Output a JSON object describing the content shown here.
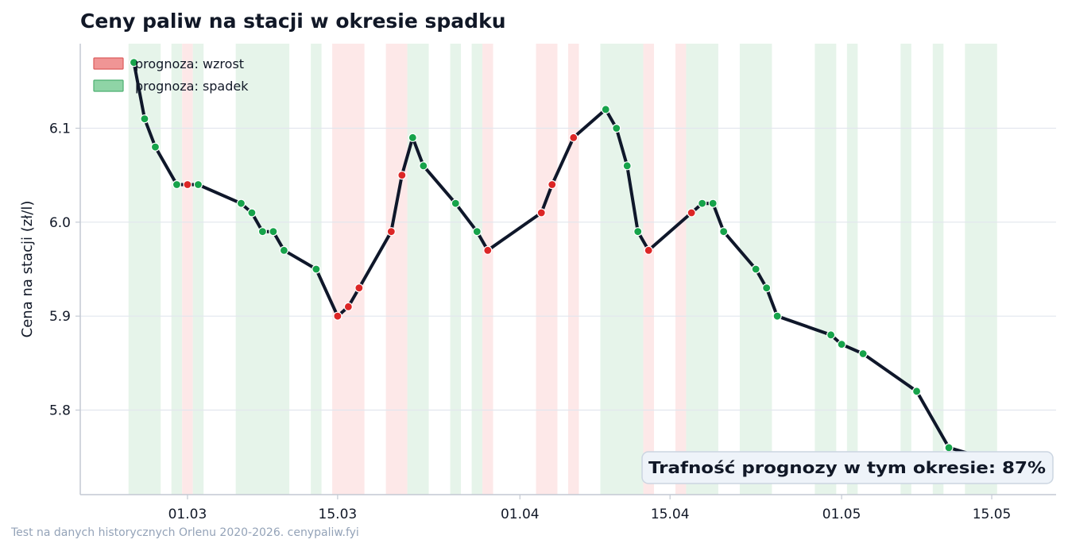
{
  "chart_data": {
    "type": "line",
    "title": "Ceny paliw na stacji w okresie spadku",
    "ylabel": "Cena na stacji (zł/l)",
    "xlabel": "",
    "x_ticks": [
      {
        "label": "01.03",
        "date": "2026-03-01"
      },
      {
        "label": "15.03",
        "date": "2026-03-15"
      },
      {
        "label": "01.04",
        "date": "2026-04-01"
      },
      {
        "label": "15.04",
        "date": "2026-04-15"
      },
      {
        "label": "01.05",
        "date": "2026-05-01"
      },
      {
        "label": "15.05",
        "date": "2026-05-15"
      }
    ],
    "y_ticks": [
      5.8,
      5.9,
      6.0,
      6.1
    ],
    "xlim": [
      "2026-02-19",
      "2026-05-21"
    ],
    "ylim": [
      5.71,
      6.19
    ],
    "grid": "horizontal",
    "line_color": "#0f172a",
    "colors": {
      "wzrost": "#dc2626",
      "spadek": "#16a34a",
      "band_wzrost": "#fde8e8",
      "band_spadek": "#e6f4ea"
    },
    "legend": {
      "placement": "top-left",
      "entries": [
        {
          "label": "prognoza: wzrost",
          "color": "#f09595",
          "edge": "#dc5c5c"
        },
        {
          "label": "prognoza: spadek",
          "color": "#8fd4a6",
          "edge": "#4caf70"
        }
      ]
    },
    "series": [
      {
        "points": [
          {
            "date": "2026-02-24",
            "value": 6.17,
            "forecast": "spadek"
          },
          {
            "date": "2026-02-25",
            "value": 6.11,
            "forecast": "spadek"
          },
          {
            "date": "2026-02-26",
            "value": 6.08,
            "forecast": "spadek"
          },
          {
            "date": "2026-02-28",
            "value": 6.04,
            "forecast": "spadek"
          },
          {
            "date": "2026-03-01",
            "value": 6.04,
            "forecast": "wzrost"
          },
          {
            "date": "2026-03-02",
            "value": 6.04,
            "forecast": "spadek"
          },
          {
            "date": "2026-03-06",
            "value": 6.02,
            "forecast": "spadek"
          },
          {
            "date": "2026-03-07",
            "value": 6.01,
            "forecast": "spadek"
          },
          {
            "date": "2026-03-08",
            "value": 5.99,
            "forecast": "spadek"
          },
          {
            "date": "2026-03-09",
            "value": 5.99,
            "forecast": "spadek"
          },
          {
            "date": "2026-03-10",
            "value": 5.97,
            "forecast": "spadek"
          },
          {
            "date": "2026-03-13",
            "value": 5.95,
            "forecast": "spadek"
          },
          {
            "date": "2026-03-15",
            "value": 5.9,
            "forecast": "wzrost"
          },
          {
            "date": "2026-03-16",
            "value": 5.91,
            "forecast": "wzrost"
          },
          {
            "date": "2026-03-17",
            "value": 5.93,
            "forecast": "wzrost"
          },
          {
            "date": "2026-03-20",
            "value": 5.99,
            "forecast": "wzrost"
          },
          {
            "date": "2026-03-21",
            "value": 6.05,
            "forecast": "wzrost"
          },
          {
            "date": "2026-03-22",
            "value": 6.09,
            "forecast": "spadek"
          },
          {
            "date": "2026-03-23",
            "value": 6.06,
            "forecast": "spadek"
          },
          {
            "date": "2026-03-26",
            "value": 6.02,
            "forecast": "spadek"
          },
          {
            "date": "2026-03-28",
            "value": 5.99,
            "forecast": "spadek"
          },
          {
            "date": "2026-03-29",
            "value": 5.97,
            "forecast": "wzrost"
          },
          {
            "date": "2026-04-03",
            "value": 6.01,
            "forecast": "wzrost"
          },
          {
            "date": "2026-04-04",
            "value": 6.04,
            "forecast": "wzrost"
          },
          {
            "date": "2026-04-06",
            "value": 6.09,
            "forecast": "wzrost"
          },
          {
            "date": "2026-04-09",
            "value": 6.12,
            "forecast": "spadek"
          },
          {
            "date": "2026-04-10",
            "value": 6.1,
            "forecast": "spadek"
          },
          {
            "date": "2026-04-11",
            "value": 6.06,
            "forecast": "spadek"
          },
          {
            "date": "2026-04-12",
            "value": 5.99,
            "forecast": "spadek"
          },
          {
            "date": "2026-04-13",
            "value": 5.97,
            "forecast": "wzrost"
          },
          {
            "date": "2026-04-17",
            "value": 6.01,
            "forecast": "wzrost"
          },
          {
            "date": "2026-04-18",
            "value": 6.02,
            "forecast": "spadek"
          },
          {
            "date": "2026-04-19",
            "value": 6.02,
            "forecast": "spadek"
          },
          {
            "date": "2026-04-20",
            "value": 5.99,
            "forecast": "spadek"
          },
          {
            "date": "2026-04-23",
            "value": 5.95,
            "forecast": "spadek"
          },
          {
            "date": "2026-04-24",
            "value": 5.93,
            "forecast": "spadek"
          },
          {
            "date": "2026-04-25",
            "value": 5.9,
            "forecast": "spadek"
          },
          {
            "date": "2026-04-30",
            "value": 5.88,
            "forecast": "spadek"
          },
          {
            "date": "2026-05-01",
            "value": 5.87,
            "forecast": "spadek"
          },
          {
            "date": "2026-05-03",
            "value": 5.86,
            "forecast": "spadek"
          },
          {
            "date": "2026-05-08",
            "value": 5.82,
            "forecast": "spadek"
          },
          {
            "date": "2026-05-11",
            "value": 5.76,
            "forecast": "spadek"
          },
          {
            "date": "2026-05-14",
            "value": 5.75,
            "forecast": "spadek"
          },
          {
            "date": "2026-05-15",
            "value": 5.75,
            "forecast": "spadek"
          },
          {
            "date": "2026-05-16",
            "value": 5.73,
            "forecast": "spadek"
          }
        ]
      }
    ],
    "bands": [
      {
        "start": "2026-02-23T12:00",
        "end": "2026-02-26T12:00",
        "forecast": "spadek"
      },
      {
        "start": "2026-02-27T12:00",
        "end": "2026-02-28T12:00",
        "forecast": "spadek"
      },
      {
        "start": "2026-02-28T12:00",
        "end": "2026-03-01T12:00",
        "forecast": "wzrost"
      },
      {
        "start": "2026-03-01T12:00",
        "end": "2026-03-02T12:00",
        "forecast": "spadek"
      },
      {
        "start": "2026-03-05T12:00",
        "end": "2026-03-10T12:00",
        "forecast": "spadek"
      },
      {
        "start": "2026-03-12T12:00",
        "end": "2026-03-13T12:00",
        "forecast": "spadek"
      },
      {
        "start": "2026-03-14T12:00",
        "end": "2026-03-17T12:00",
        "forecast": "wzrost"
      },
      {
        "start": "2026-03-19T12:00",
        "end": "2026-03-21T12:00",
        "forecast": "wzrost"
      },
      {
        "start": "2026-03-21T12:00",
        "end": "2026-03-23T12:00",
        "forecast": "spadek"
      },
      {
        "start": "2026-03-25T12:00",
        "end": "2026-03-26T12:00",
        "forecast": "spadek"
      },
      {
        "start": "2026-03-27T12:00",
        "end": "2026-03-28T12:00",
        "forecast": "spadek"
      },
      {
        "start": "2026-03-28T12:00",
        "end": "2026-03-29T12:00",
        "forecast": "wzrost"
      },
      {
        "start": "2026-04-02T12:00",
        "end": "2026-04-04T12:00",
        "forecast": "wzrost"
      },
      {
        "start": "2026-04-05T12:00",
        "end": "2026-04-06T12:00",
        "forecast": "wzrost"
      },
      {
        "start": "2026-04-08T12:00",
        "end": "2026-04-12T12:00",
        "forecast": "spadek"
      },
      {
        "start": "2026-04-12T12:00",
        "end": "2026-04-13T12:00",
        "forecast": "wzrost"
      },
      {
        "start": "2026-04-15T12:00",
        "end": "2026-04-16T12:00",
        "forecast": "wzrost"
      },
      {
        "start": "2026-04-16T12:00",
        "end": "2026-04-19T12:00",
        "forecast": "spadek"
      },
      {
        "start": "2026-04-21T12:00",
        "end": "2026-04-24T12:00",
        "forecast": "spadek"
      },
      {
        "start": "2026-04-28T12:00",
        "end": "2026-04-30T12:00",
        "forecast": "spadek"
      },
      {
        "start": "2026-05-01T12:00",
        "end": "2026-05-02T12:00",
        "forecast": "spadek"
      },
      {
        "start": "2026-05-06T12:00",
        "end": "2026-05-07T12:00",
        "forecast": "spadek"
      },
      {
        "start": "2026-05-09T12:00",
        "end": "2026-05-10T12:00",
        "forecast": "spadek"
      },
      {
        "start": "2026-05-12T12:00",
        "end": "2026-05-15T12:00",
        "forecast": "spadek"
      }
    ],
    "annotation": "Trafność prognozy w tym okresie: 87%",
    "footer": "Test na danych historycznych Orlenu 2020-2026. cenypaliw.fyi"
  }
}
